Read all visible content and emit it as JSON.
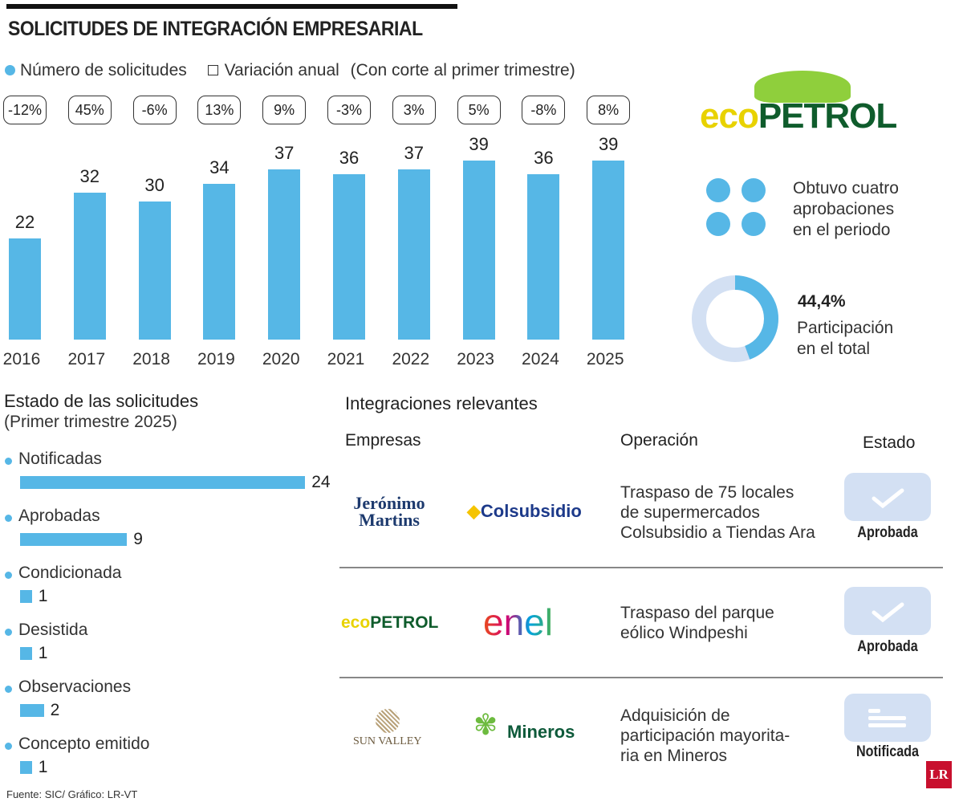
{
  "title": "SOLICITUDES DE INTEGRACIÓN EMPRESARIAL",
  "legend": {
    "series": "Número de solicitudes",
    "variation": "Variación anual",
    "note": "(Con corte al primer trimestre)"
  },
  "colors": {
    "bar": "#56b7e6",
    "badge": "#d3e0f3",
    "donut_rest": "#d3e0f3"
  },
  "chart_data": [
    {
      "type": "bar",
      "categories": [
        "2016",
        "2017",
        "2018",
        "2019",
        "2020",
        "2021",
        "2022",
        "2023",
        "2024",
        "2025"
      ],
      "values": [
        22,
        32,
        30,
        34,
        37,
        36,
        37,
        39,
        36,
        39
      ],
      "annual_variation": [
        "-12%",
        "45%",
        "-6%",
        "13%",
        "9%",
        "-3%",
        "3%",
        "5%",
        "-8%",
        "8%"
      ],
      "ylim": [
        0,
        39
      ],
      "grid": false,
      "legend_position": "top-left"
    },
    {
      "type": "bar",
      "orientation": "horizontal",
      "title": "Estado de las solicitudes",
      "subtitle": "(Primer trimestre 2025)",
      "categories": [
        "Notificadas",
        "Aprobadas",
        "Condicionada",
        "Desistida",
        "Observaciones",
        "Concepto emitido"
      ],
      "values": [
        24,
        9,
        1,
        1,
        2,
        1
      ]
    }
  ],
  "ecopetrol": {
    "logo": "ECOPETROL",
    "approvals_text": [
      "Obtuvo cuatro",
      "aprobaciones",
      "en el periodo"
    ],
    "approvals_count": 4,
    "share_value": "44,4%",
    "share_fraction": 0.444,
    "share_text": [
      "Participación",
      "en el total"
    ]
  },
  "relevant": {
    "title": "Integraciones relevantes",
    "headers": {
      "companies": "Empresas",
      "operation": "Operación",
      "status": "Estado"
    },
    "rows": [
      {
        "company_a": "Jerónimo Martins",
        "company_b": "Colsubsidio",
        "operation": [
          "Traspaso de 75 locales",
          "de supermercados",
          "Colsubsidio a Tiendas Ara"
        ],
        "status": "Aprobada",
        "icon": "check-icon"
      },
      {
        "company_a": "ECOPETROL",
        "company_b": "enel",
        "operation": [
          "Traspaso del parque",
          "eólico Windpeshi"
        ],
        "status": "Aprobada",
        "icon": "check-icon"
      },
      {
        "company_a": "SUN VALLEY",
        "company_b": "Mineros",
        "operation": [
          "Adquisición de",
          "participación mayorita-",
          "ria en Mineros"
        ],
        "status": "Notificada",
        "icon": "document-lines-icon"
      }
    ]
  },
  "source": "Fuente: SIC/ Gráfico: LR-VT",
  "brand": "LR"
}
